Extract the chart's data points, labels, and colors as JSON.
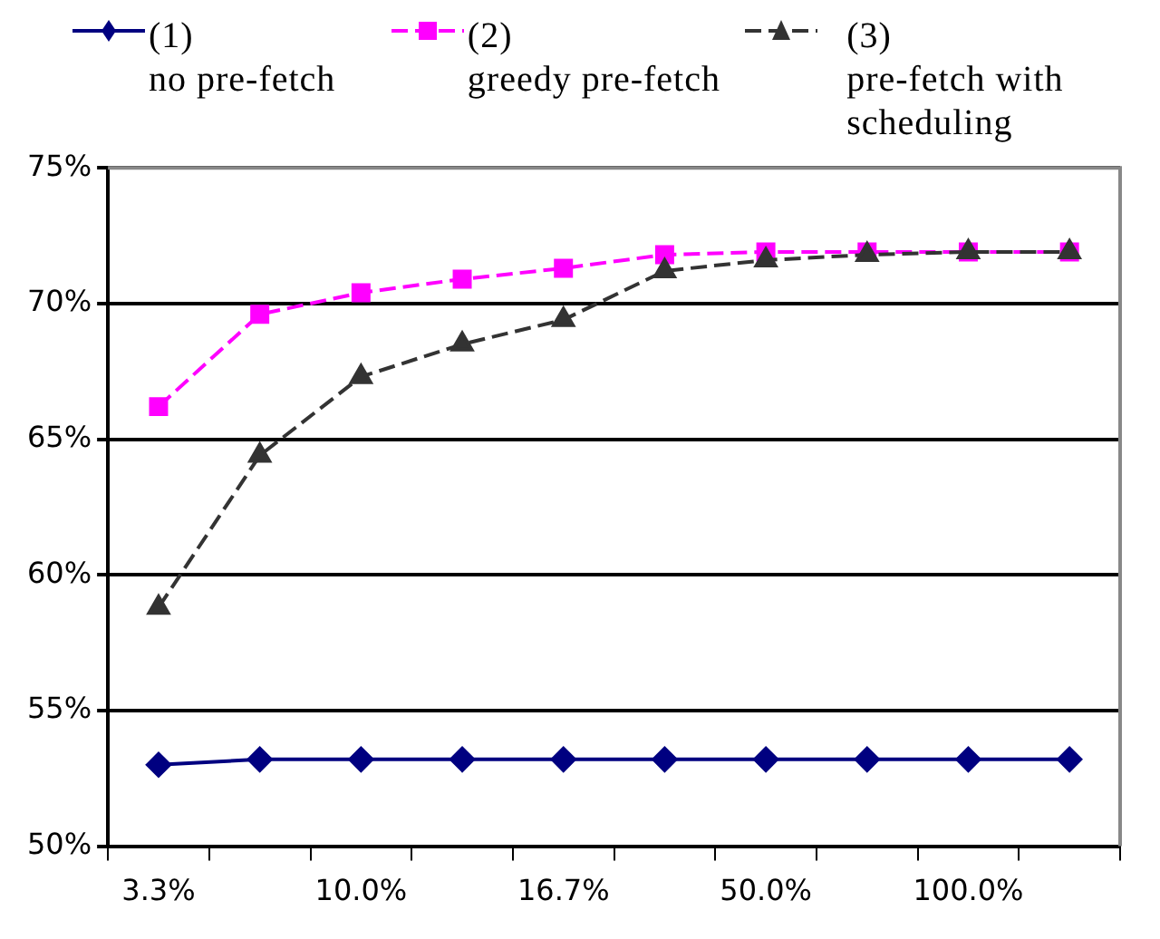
{
  "chart_data": {
    "type": "line",
    "categories": [
      "3.3%",
      null,
      "10.0%",
      null,
      "16.7%",
      null,
      "50.0%",
      null,
      "100.0%",
      null
    ],
    "series": [
      {
        "name": "(1)\nno pre-fetch",
        "color": "#000080",
        "marker": "diamond",
        "line_style": "solid",
        "values": [
          53.0,
          53.2,
          53.2,
          53.2,
          53.2,
          53.2,
          53.2,
          53.2,
          53.2,
          53.2
        ]
      },
      {
        "name": "(2)\ngreedy pre-fetch",
        "color": "#ff00ff",
        "marker": "square",
        "line_style": "dashed",
        "values": [
          66.2,
          69.6,
          70.4,
          70.9,
          71.3,
          71.8,
          71.9,
          71.9,
          71.9,
          71.9
        ]
      },
      {
        "name": "(3)\npre-fetch with scheduling",
        "color": "#333333",
        "marker": "triangle",
        "line_style": "dashed",
        "values": [
          58.8,
          64.4,
          67.3,
          68.5,
          69.4,
          71.2,
          71.6,
          71.8,
          71.9,
          71.9
        ]
      }
    ],
    "ylim": [
      50,
      75
    ],
    "yticks": [
      {
        "value": 50,
        "label": "50%"
      },
      {
        "value": 55,
        "label": "55%"
      },
      {
        "value": 60,
        "label": "60%"
      },
      {
        "value": 65,
        "label": "65%"
      },
      {
        "value": 70,
        "label": "70%"
      },
      {
        "value": 75,
        "label": "75%"
      }
    ],
    "grid": "y",
    "legend": "top"
  }
}
